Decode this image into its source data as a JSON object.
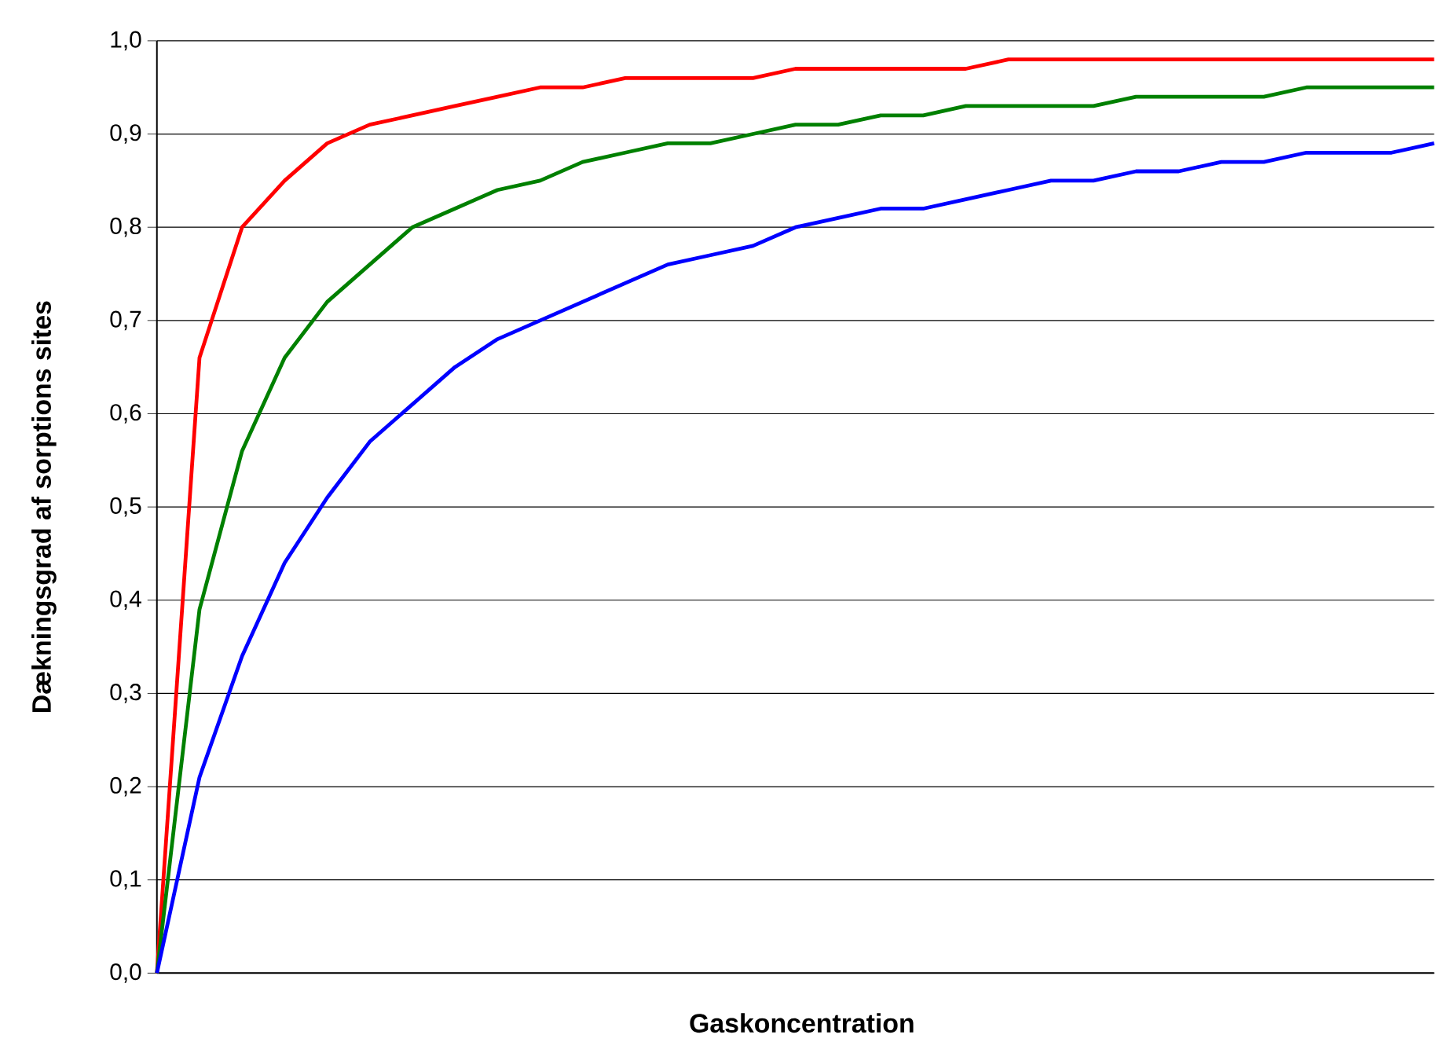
{
  "chart_data": {
    "type": "line",
    "xlabel": "Gaskoncentration",
    "ylabel": "Dækningsgrad af sorptions sites",
    "categories": [
      null,
      null,
      null,
      null,
      null,
      null,
      null,
      null,
      null,
      null,
      null,
      null,
      null,
      null,
      null,
      null,
      null,
      null,
      null,
      null,
      null,
      null,
      null,
      null,
      null,
      null,
      null,
      null,
      null,
      null,
      null
    ],
    "series": [
      {
        "color": "#ff0000",
        "values": [
          0,
          0.66,
          0.8,
          0.85,
          0.89,
          0.91,
          0.92,
          0.93,
          0.94,
          0.95,
          0.95,
          0.96,
          0.96,
          0.96,
          0.96,
          0.97,
          0.97,
          0.97,
          0.97,
          0.97,
          0.98,
          0.98,
          0.98,
          0.98,
          0.98,
          0.98,
          0.98,
          0.98,
          0.98,
          0.98,
          0.98
        ]
      },
      {
        "color": "#008000",
        "values": [
          0,
          0.39,
          0.56,
          0.66,
          0.72,
          0.76,
          0.8,
          0.82,
          0.84,
          0.85,
          0.87,
          0.88,
          0.89,
          0.89,
          0.9,
          0.91,
          0.91,
          0.92,
          0.92,
          0.93,
          0.93,
          0.93,
          0.93,
          0.94,
          0.94,
          0.94,
          0.94,
          0.95,
          0.95,
          0.95,
          0.95
        ]
      },
      {
        "color": "#0000ff",
        "values": [
          0,
          0.21,
          0.34,
          0.44,
          0.51,
          0.57,
          0.61,
          0.65,
          0.68,
          0.7,
          0.72,
          0.74,
          0.76,
          0.77,
          0.78,
          0.8,
          0.81,
          0.82,
          0.82,
          0.83,
          0.84,
          0.85,
          0.85,
          0.86,
          0.86,
          0.87,
          0.87,
          0.88,
          0.88,
          0.88,
          0.89
        ]
      }
    ],
    "ylim": [
      0,
      1
    ],
    "yticks": [
      {
        "value": 0,
        "label": "0,0"
      },
      {
        "value": 0.1,
        "label": "0,1"
      },
      {
        "value": 0.2,
        "label": "0,2"
      },
      {
        "value": 0.3,
        "label": "0,3"
      },
      {
        "value": 0.4,
        "label": "0,4"
      },
      {
        "value": 0.5,
        "label": "0,5"
      },
      {
        "value": 0.6,
        "label": "0,6"
      },
      {
        "value": 0.7,
        "label": "0,7"
      },
      {
        "value": 0.8,
        "label": "0,8"
      },
      {
        "value": 0.9,
        "label": "0,9"
      },
      {
        "value": 1,
        "label": "1,0"
      }
    ],
    "grid": "y",
    "tick_labels": "y"
  }
}
